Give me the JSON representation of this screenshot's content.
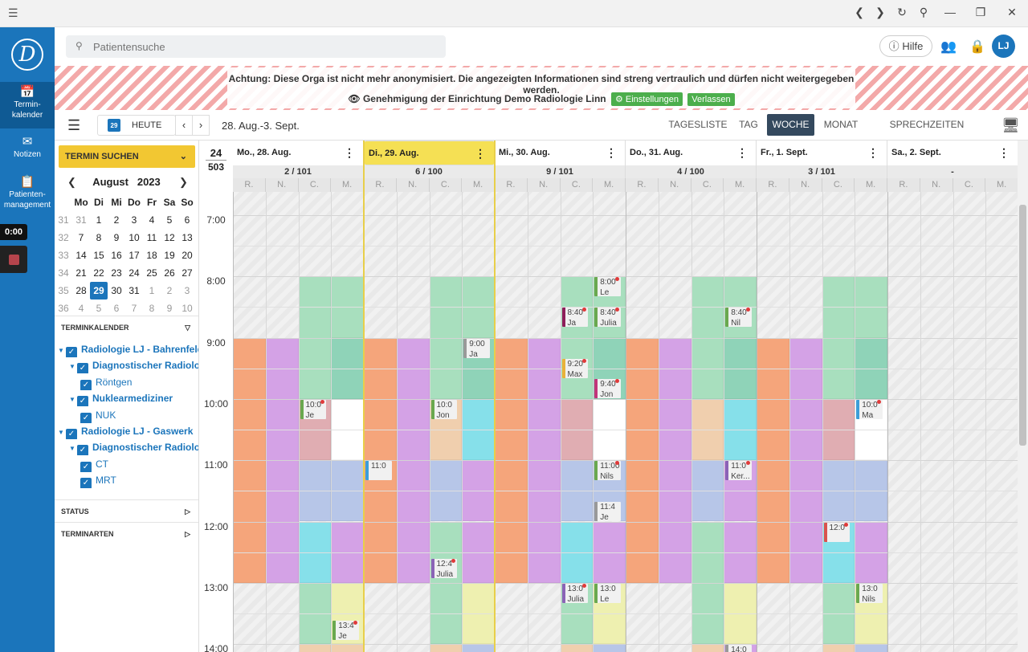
{
  "colors": {
    "primary": "#1b75bb",
    "today": "#f5e054",
    "warning_stripe": "#f3a9a9",
    "green": "#4cae4c"
  },
  "sidebar": {
    "logo": "D",
    "items": [
      {
        "label": "Termin-\nkalender"
      },
      {
        "label": "Notizen"
      },
      {
        "label": "Patienten-\nmanagement"
      }
    ],
    "timer": "0:00"
  },
  "search": {
    "placeholder": "Patientensuche"
  },
  "topbar": {
    "help": "Hilfe",
    "avatar": "LJ"
  },
  "banner": {
    "line1": "Achtung: Diese Orga ist nicht mehr anonymisiert. Die angezeigten Informationen sind streng vertraulich und dürfen nicht weitergegeben werden.",
    "line2": "Genehmigung der Einrichtung Demo Radiologie Linn",
    "settings": "Einstellungen",
    "leave": "Verlassen"
  },
  "toolbar": {
    "today_num": "29",
    "today": "HEUTE",
    "range": "28. Aug.-3. Sept.",
    "views": [
      "TAGESLISTE",
      "TAG",
      "WOCHE",
      "MONAT",
      "SPRECHZEITEN ÄNDERN"
    ],
    "active_view": "WOCHE"
  },
  "find": {
    "label": "TERMIN SUCHEN"
  },
  "minical": {
    "month": "August",
    "year": "2023",
    "headers": [
      "Mo",
      "Di",
      "Mi",
      "Do",
      "Fr",
      "Sa",
      "So"
    ],
    "weeks": [
      {
        "wk": "31",
        "days": [
          "31",
          "1",
          "2",
          "3",
          "4",
          "5",
          "6"
        ]
      },
      {
        "wk": "32",
        "days": [
          "7",
          "8",
          "9",
          "10",
          "11",
          "12",
          "13"
        ]
      },
      {
        "wk": "33",
        "days": [
          "14",
          "15",
          "16",
          "17",
          "18",
          "19",
          "20"
        ]
      },
      {
        "wk": "34",
        "days": [
          "21",
          "22",
          "23",
          "24",
          "25",
          "26",
          "27"
        ]
      },
      {
        "wk": "35",
        "days": [
          "28",
          "29",
          "30",
          "31",
          "1",
          "2",
          "3"
        ]
      },
      {
        "wk": "36",
        "days": [
          "4",
          "5",
          "6",
          "7",
          "8",
          "9",
          "10"
        ]
      }
    ]
  },
  "sections": {
    "terminkalender": "TERMINKALENDER",
    "status": "STATUS",
    "terminarten": "TERMINARTEN"
  },
  "tree": [
    {
      "label": "Radiologie LJ - Bahrenfeld",
      "level": 0
    },
    {
      "label": "Diagnostischer Radiologe",
      "level": 1
    },
    {
      "label": "Röntgen",
      "level": 2
    },
    {
      "label": "Nuklearmediziner",
      "level": 1
    },
    {
      "label": "NUK",
      "level": 2
    },
    {
      "label": "Radiologie LJ - Gaswerk",
      "level": 0
    },
    {
      "label": "Diagnostischer Radiologe",
      "level": 1
    },
    {
      "label": "CT",
      "level": 2
    },
    {
      "label": "MRT",
      "level": 2
    }
  ],
  "calendar": {
    "week": "24",
    "total": "503",
    "days": [
      {
        "label": "Mo., 28. Aug.",
        "count": "2 / 101"
      },
      {
        "label": "Di., 29. Aug.",
        "count": "6 / 100",
        "today": true
      },
      {
        "label": "Mi., 30. Aug.",
        "count": "9 / 101"
      },
      {
        "label": "Do., 31. Aug.",
        "count": "4 / 100"
      },
      {
        "label": "Fr., 1. Sept.",
        "count": "3 / 101"
      },
      {
        "label": "Sa., 2. Sept.",
        "count": "-"
      }
    ],
    "subcols": [
      "R.",
      "N.",
      "C.",
      "M."
    ],
    "times": [
      "7:00",
      "8:00",
      "9:00",
      "10:00",
      "11:00",
      "12:00",
      "13:00",
      "14:00"
    ],
    "appointments": [
      {
        "t": "10:0",
        "n": "Je"
      },
      {
        "t": "13:4",
        "n": "Je"
      },
      {
        "t": "11:0",
        "n": ""
      },
      {
        "t": "10:0",
        "n": "Jon"
      },
      {
        "t": "12:4",
        "n": "Julia"
      },
      {
        "t": "9:00",
        "n": "Ja"
      },
      {
        "t": "8:40",
        "n": "Ja"
      },
      {
        "t": "9:20",
        "n": "Max"
      },
      {
        "t": "13:0",
        "n": "Julia"
      },
      {
        "t": "8:00",
        "n": "Le"
      },
      {
        "t": "8:40",
        "n": "Julia"
      },
      {
        "t": "9:40",
        "n": "Jon"
      },
      {
        "t": "11:00",
        "n": "Nils"
      },
      {
        "t": "11:4",
        "n": "Je"
      },
      {
        "t": "13:0",
        "n": "Le"
      },
      {
        "t": "8:40",
        "n": "Nil"
      },
      {
        "t": "11:0",
        "n": "Ker..."
      },
      {
        "t": "14:0",
        "n": ""
      },
      {
        "t": "10:0",
        "n": "Ma"
      },
      {
        "t": "12:0",
        "n": ""
      },
      {
        "t": "13:0",
        "n": "Nils"
      }
    ]
  }
}
